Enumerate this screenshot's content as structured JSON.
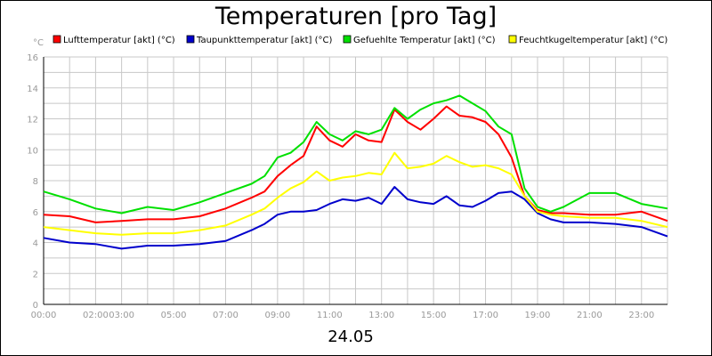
{
  "chart_data": {
    "type": "line",
    "title": "Temperaturen [pro Tag]",
    "y_unit": "°C",
    "date_label": "24.05",
    "x_range": [
      "00:00",
      "24:00"
    ],
    "ylim": [
      0,
      16
    ],
    "y_ticks": [
      0,
      2,
      4,
      6,
      8,
      10,
      12,
      14,
      16
    ],
    "x_tick_labels": [
      "00:00",
      "02:00",
      "03:00",
      "05:00",
      "07:00",
      "09:00",
      "11:00",
      "13:00",
      "15:00",
      "17:00",
      "19:00",
      "21:00",
      "23:00"
    ],
    "grid": true,
    "legend_position": "top",
    "series": [
      {
        "name": "Lufttemperatur [akt] (°C)",
        "color": "#ff0000",
        "x": [
          "00:00",
          "01:00",
          "02:00",
          "03:00",
          "04:00",
          "05:00",
          "06:00",
          "07:00",
          "08:00",
          "08:30",
          "09:00",
          "09:30",
          "10:00",
          "10:30",
          "11:00",
          "11:30",
          "12:00",
          "12:30",
          "13:00",
          "13:30",
          "14:00",
          "14:30",
          "15:00",
          "15:30",
          "16:00",
          "16:30",
          "17:00",
          "17:30",
          "18:00",
          "18:30",
          "19:00",
          "19:30",
          "20:00",
          "21:00",
          "22:00",
          "23:00",
          "24:00"
        ],
        "values": [
          5.8,
          5.7,
          5.3,
          5.4,
          5.5,
          5.5,
          5.7,
          6.2,
          6.9,
          7.3,
          8.3,
          9.0,
          9.6,
          11.5,
          10.6,
          10.2,
          11.0,
          10.6,
          10.5,
          12.6,
          11.8,
          11.3,
          12.0,
          12.8,
          12.2,
          12.1,
          11.8,
          11.0,
          9.5,
          7.0,
          6.1,
          5.9,
          5.9,
          5.8,
          5.8,
          6.0,
          5.4
        ]
      },
      {
        "name": "Taupunkttemperatur [akt] (°C)",
        "color": "#0000cc",
        "x": [
          "00:00",
          "01:00",
          "02:00",
          "03:00",
          "04:00",
          "05:00",
          "06:00",
          "07:00",
          "08:00",
          "08:30",
          "09:00",
          "09:30",
          "10:00",
          "10:30",
          "11:00",
          "11:30",
          "12:00",
          "12:30",
          "13:00",
          "13:30",
          "14:00",
          "14:30",
          "15:00",
          "15:30",
          "16:00",
          "16:30",
          "17:00",
          "17:30",
          "18:00",
          "18:30",
          "19:00",
          "19:30",
          "20:00",
          "21:00",
          "22:00",
          "23:00",
          "24:00"
        ],
        "values": [
          4.3,
          4.0,
          3.9,
          3.6,
          3.8,
          3.8,
          3.9,
          4.1,
          4.8,
          5.2,
          5.8,
          6.0,
          6.0,
          6.1,
          6.5,
          6.8,
          6.7,
          6.9,
          6.5,
          7.6,
          6.8,
          6.6,
          6.5,
          7.0,
          6.4,
          6.3,
          6.7,
          7.2,
          7.3,
          6.8,
          5.9,
          5.5,
          5.3,
          5.3,
          5.2,
          5.0,
          4.4
        ]
      },
      {
        "name": "Gefuehlte Temperatur [akt] (°C)",
        "color": "#00e000",
        "x": [
          "00:00",
          "01:00",
          "02:00",
          "03:00",
          "04:00",
          "05:00",
          "06:00",
          "07:00",
          "08:00",
          "08:30",
          "09:00",
          "09:30",
          "10:00",
          "10:30",
          "11:00",
          "11:30",
          "12:00",
          "12:30",
          "13:00",
          "13:30",
          "14:00",
          "14:30",
          "15:00",
          "15:30",
          "16:00",
          "16:30",
          "17:00",
          "17:30",
          "18:00",
          "18:30",
          "19:00",
          "19:30",
          "20:00",
          "21:00",
          "22:00",
          "23:00",
          "24:00"
        ],
        "values": [
          7.3,
          6.8,
          6.2,
          5.9,
          6.3,
          6.1,
          6.6,
          7.2,
          7.8,
          8.3,
          9.5,
          9.8,
          10.5,
          11.8,
          11.0,
          10.6,
          11.2,
          11.0,
          11.3,
          12.7,
          12.0,
          12.6,
          13.0,
          13.2,
          13.5,
          13.0,
          12.5,
          11.5,
          11.0,
          7.5,
          6.3,
          6.0,
          6.3,
          7.2,
          7.2,
          6.5,
          6.2
        ]
      },
      {
        "name": "Feuchtkugeltemperatur [akt] (°C)",
        "color": "#ffff00",
        "x": [
          "00:00",
          "01:00",
          "02:00",
          "03:00",
          "04:00",
          "05:00",
          "06:00",
          "07:00",
          "08:00",
          "08:30",
          "09:00",
          "09:30",
          "10:00",
          "10:30",
          "11:00",
          "11:30",
          "12:00",
          "12:30",
          "13:00",
          "13:30",
          "14:00",
          "14:30",
          "15:00",
          "15:30",
          "16:00",
          "16:30",
          "17:00",
          "17:30",
          "18:00",
          "18:30",
          "19:00",
          "19:30",
          "20:00",
          "21:00",
          "22:00",
          "23:00",
          "24:00"
        ],
        "values": [
          5.0,
          4.8,
          4.6,
          4.5,
          4.6,
          4.6,
          4.8,
          5.1,
          5.8,
          6.2,
          6.9,
          7.5,
          7.9,
          8.6,
          8.0,
          8.2,
          8.3,
          8.5,
          8.4,
          9.8,
          8.8,
          8.9,
          9.1,
          9.6,
          9.2,
          8.9,
          9.0,
          8.8,
          8.4,
          7.0,
          6.0,
          5.8,
          5.7,
          5.6,
          5.6,
          5.4,
          5.0
        ]
      }
    ]
  }
}
